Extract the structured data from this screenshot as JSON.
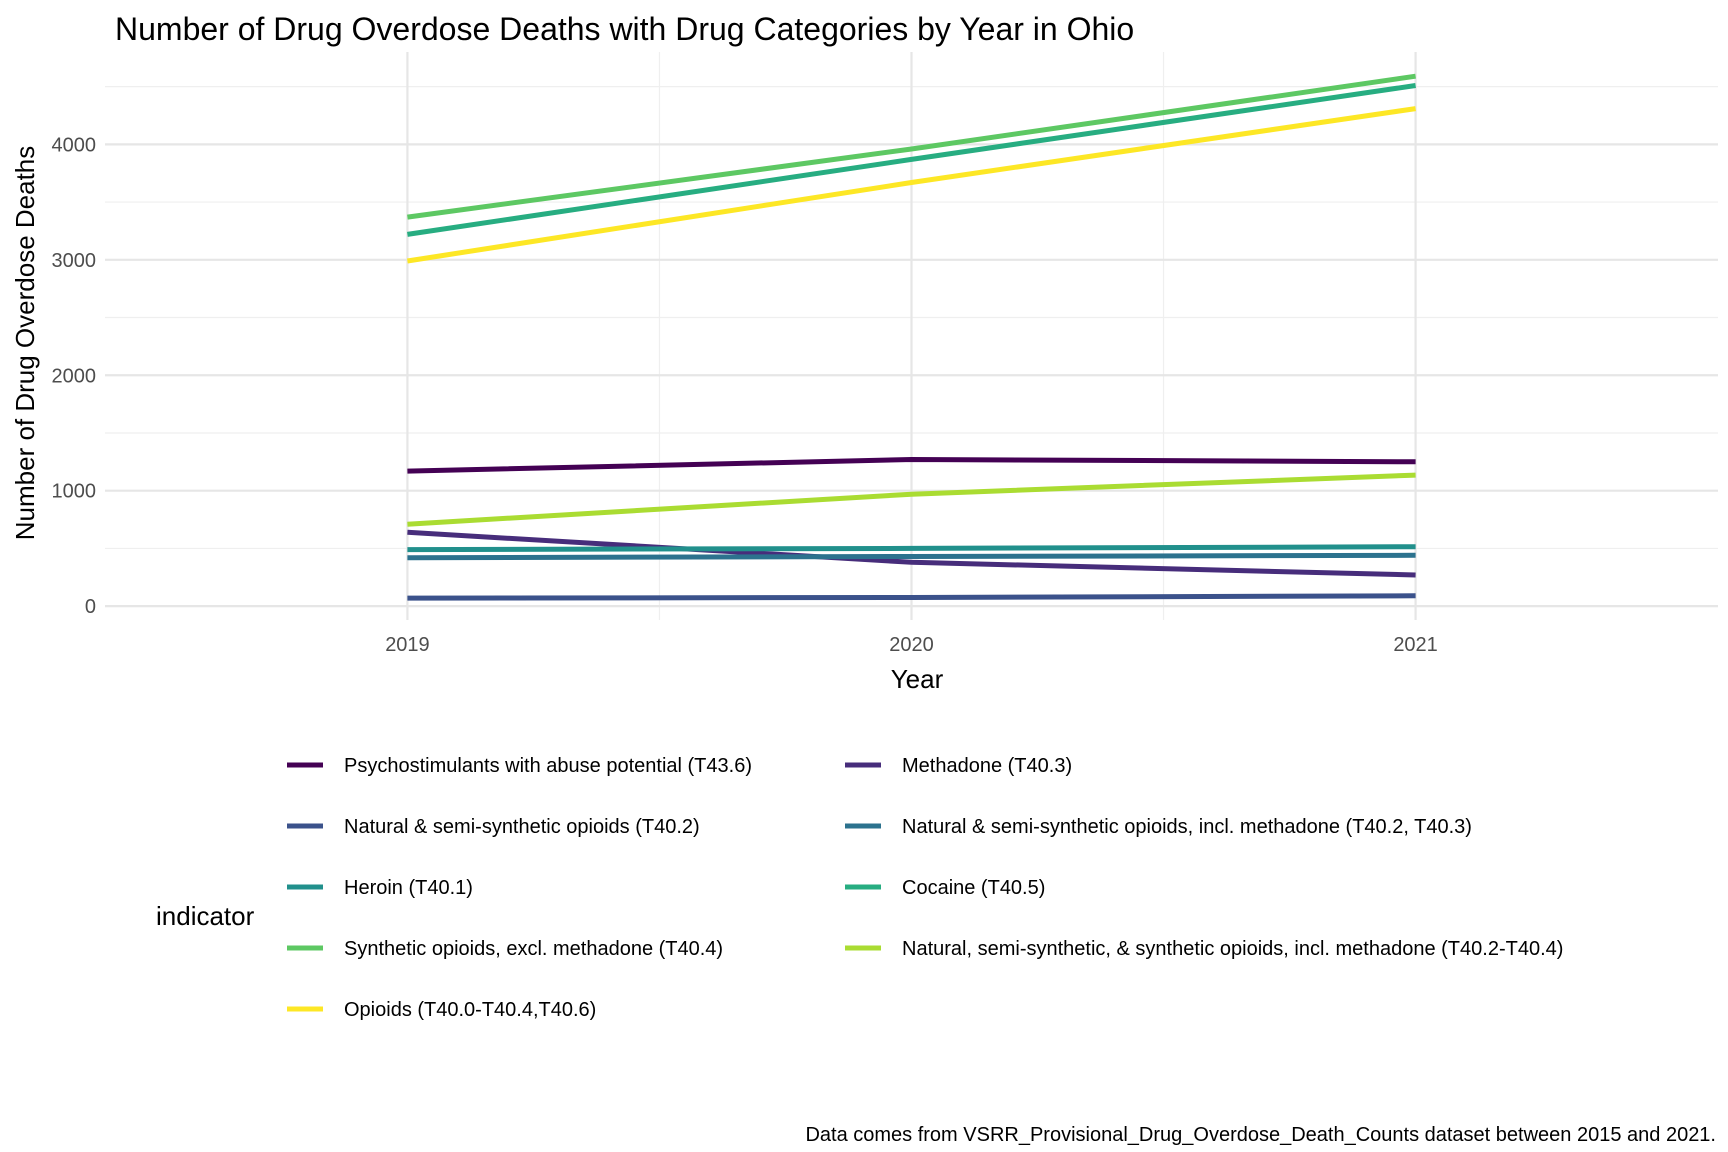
{
  "chart_data": {
    "type": "line",
    "title": "Number of Drug Overdose Deaths with Drug Categories by Year in Ohio",
    "xlabel": "Year",
    "ylabel": "Number of Drug Overdose Deaths",
    "x": [
      2019,
      2020,
      2021
    ],
    "x_tick_labels": [
      "2019",
      "2020",
      "2021"
    ],
    "xlim": [
      2018.4,
      2021.6
    ],
    "ylim": [
      -120,
      4800
    ],
    "y_ticks": [
      0,
      1000,
      2000,
      3000,
      4000
    ],
    "y_tick_labels": [
      "0",
      "1000",
      "2000",
      "3000",
      "4000"
    ],
    "grid": true,
    "legend_title": "indicator",
    "legend_position": "bottom",
    "series": [
      {
        "name": "Psychostimulants with abuse potential (T43.6)",
        "color": "#440154",
        "values": [
          1170,
          1270,
          1250
        ]
      },
      {
        "name": "Methadone (T40.3)",
        "color": "#472D7B",
        "values": [
          640,
          380,
          270
        ]
      },
      {
        "name": "Natural & semi-synthetic opioids (T40.2)",
        "color": "#3B528B",
        "values": [
          70,
          75,
          90
        ]
      },
      {
        "name": "Natural & semi-synthetic opioids, incl. methadone (T40.2, T40.3)",
        "color": "#2C728E",
        "values": [
          420,
          430,
          440
        ]
      },
      {
        "name": "Heroin (T40.1)",
        "color": "#21908C",
        "values": [
          490,
          500,
          515
        ]
      },
      {
        "name": "Cocaine (T40.5)",
        "color": "#27AD81",
        "values": [
          3220,
          3870,
          4510
        ]
      },
      {
        "name": "Synthetic opioids, excl. methadone (T40.4)",
        "color": "#5DC863",
        "values": [
          3370,
          3960,
          4590
        ]
      },
      {
        "name": "Natural, semi-synthetic, & synthetic opioids, incl. methadone (T40.2-T40.4)",
        "color": "#AADC32",
        "values": [
          710,
          970,
          1135
        ]
      },
      {
        "name": "Opioids (T40.0-T40.4,T40.6)",
        "color": "#FDE725",
        "values": [
          2990,
          3670,
          4310
        ]
      }
    ],
    "caption": "Data comes from VSRR_Provisional_Drug_Overdose_Death_Counts dataset between 2015 and 2021."
  }
}
